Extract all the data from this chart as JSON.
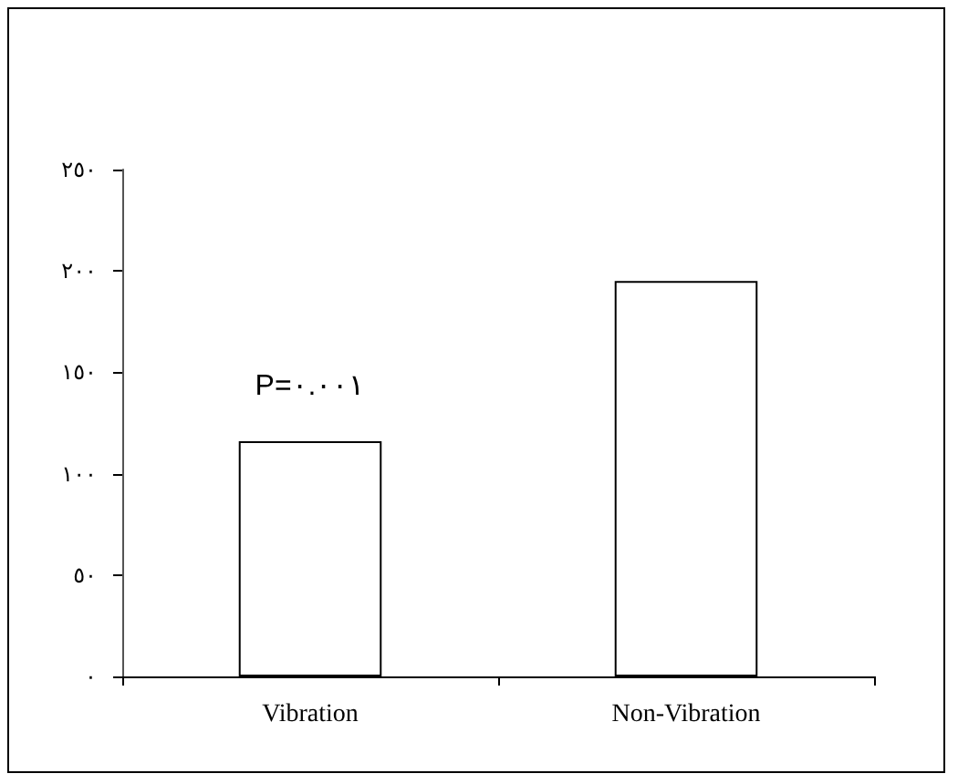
{
  "chart_data": {
    "type": "bar",
    "categories": [
      "Vibration",
      "Non-Vibration"
    ],
    "values": [
      116,
      195
    ],
    "color": "#ffffff",
    "ylim": [
      0,
      250
    ],
    "yticks": [
      {
        "value": 0,
        "label": "٠"
      },
      {
        "value": 50,
        "label": "٥٠"
      },
      {
        "value": 100,
        "label": "١٠٠"
      },
      {
        "value": 150,
        "label": "١٥٠"
      },
      {
        "value": 200,
        "label": "٢٠٠"
      },
      {
        "value": 250,
        "label": "٢٥٠"
      }
    ],
    "annotations": [
      "P=٠.٠٠١"
    ],
    "grid": false
  }
}
